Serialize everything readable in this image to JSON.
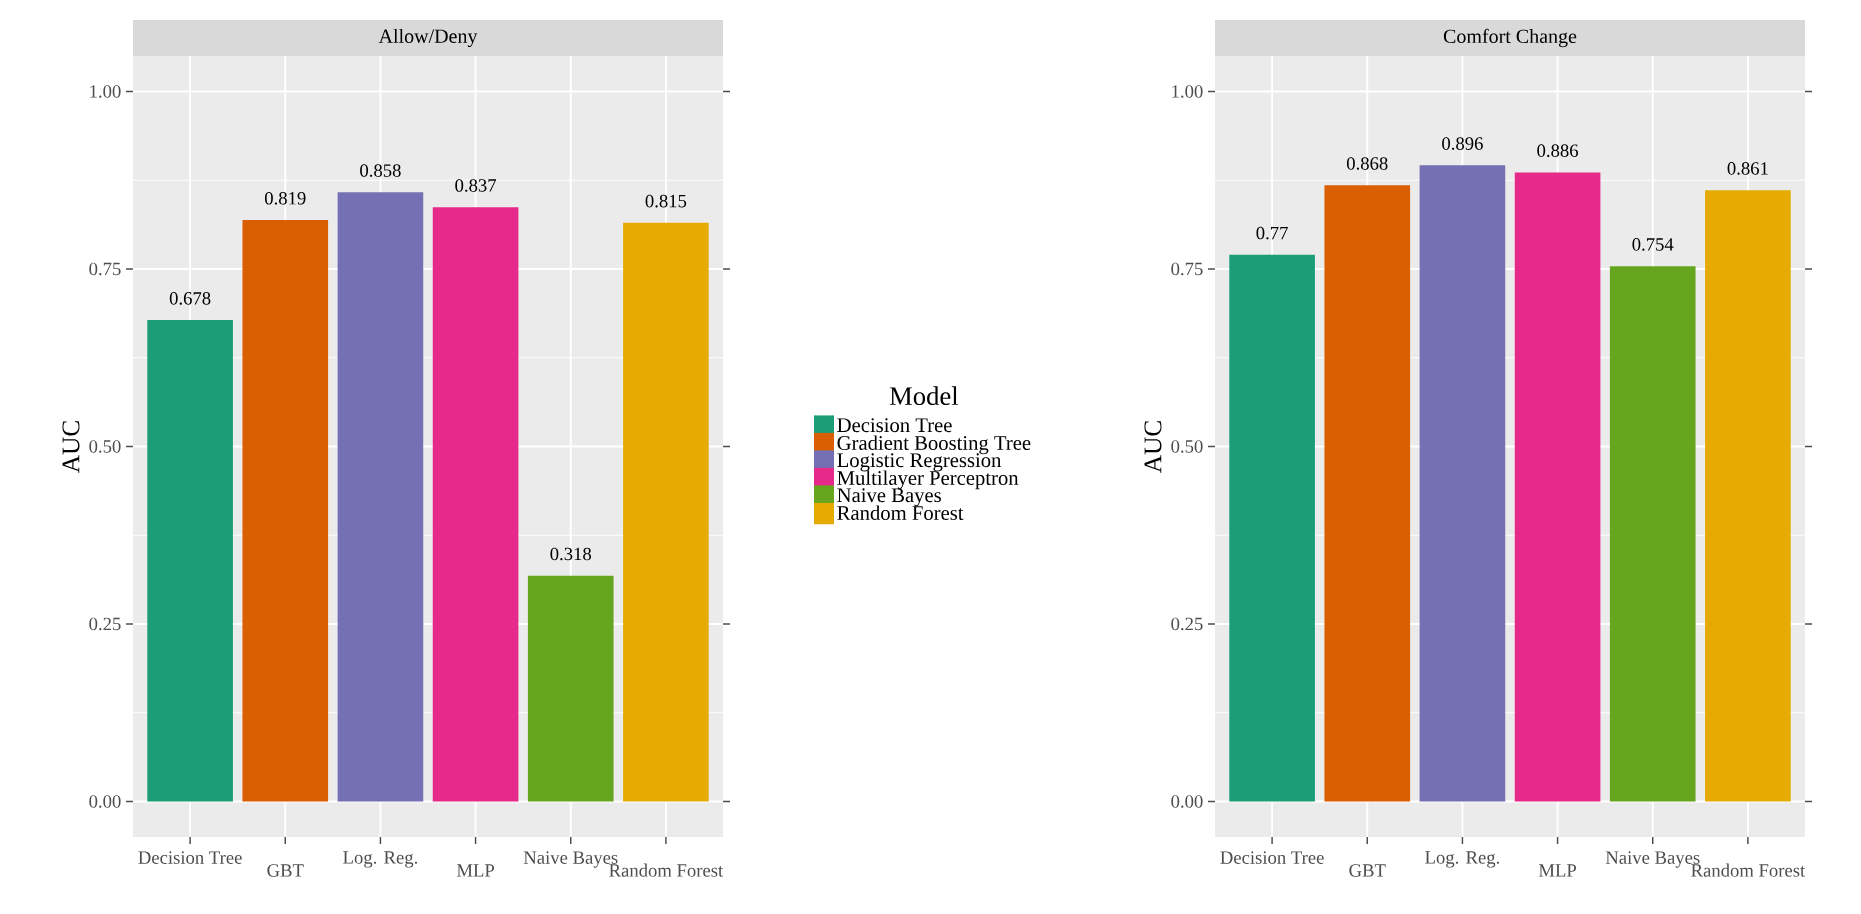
{
  "chart_data": [
    {
      "type": "bar",
      "title": "Allow/Deny",
      "ylabel": "AUC",
      "legend_title": "Model",
      "legend": "right",
      "grid": true,
      "data_labels": true,
      "categories": [
        "Decision Tree",
        "GBT",
        "Log. Reg.",
        "MLP",
        "Naive Bayes",
        "Random Forest"
      ],
      "ylim": [
        -0.05,
        1.05
      ],
      "yticks": [
        {
          "value": 0,
          "label": "0.00"
        },
        {
          "value": 0.25,
          "label": "0.25"
        },
        {
          "value": 0.5,
          "label": "0.50"
        },
        {
          "value": 0.75,
          "label": "0.75"
        },
        {
          "value": 1,
          "label": "1.00"
        }
      ],
      "series": [
        {
          "name": "Decision Tree",
          "color": "#1b9e77",
          "values": [
            0.678,
            null,
            null,
            null,
            null,
            null
          ]
        },
        {
          "name": "Gradient Boosting Tree",
          "color": "#d95f02",
          "values": [
            null,
            0.819,
            null,
            null,
            null,
            null
          ]
        },
        {
          "name": "Logistic Regression",
          "color": "#7570b3",
          "values": [
            null,
            null,
            0.858,
            null,
            null,
            null
          ]
        },
        {
          "name": "Multilayer Perceptron",
          "color": "#e7298a",
          "values": [
            null,
            null,
            null,
            0.837,
            null,
            null
          ]
        },
        {
          "name": "Naive Bayes",
          "color": "#66a61e",
          "values": [
            null,
            null,
            null,
            null,
            0.318,
            null
          ]
        },
        {
          "name": "Random Forest",
          "color": "#e6ab02",
          "values": [
            null,
            null,
            null,
            null,
            null,
            0.815
          ]
        }
      ]
    },
    {
      "type": "bar",
      "title": "Comfort Change",
      "ylabel": "AUC",
      "grid": true,
      "data_labels": true,
      "categories": [
        "Decision Tree",
        "GBT",
        "Log. Reg.",
        "MLP",
        "Naive Bayes",
        "Random Forest"
      ],
      "ylim": [
        -0.05,
        1.05
      ],
      "yticks": [
        {
          "value": 0,
          "label": "0.00"
        },
        {
          "value": 0.25,
          "label": "0.25"
        },
        {
          "value": 0.5,
          "label": "0.50"
        },
        {
          "value": 0.75,
          "label": "0.75"
        },
        {
          "value": 1,
          "label": "1.00"
        }
      ],
      "series": [
        {
          "color": "#1b9e77",
          "values": [
            0.77,
            null,
            null,
            null,
            null,
            null
          ]
        },
        {
          "color": "#d95f02",
          "values": [
            null,
            0.868,
            null,
            null,
            null,
            null
          ]
        },
        {
          "color": "#7570b3",
          "values": [
            null,
            null,
            0.896,
            null,
            null,
            null
          ]
        },
        {
          "color": "#e7298a",
          "values": [
            null,
            null,
            null,
            0.886,
            null,
            null
          ]
        },
        {
          "color": "#66a61e",
          "values": [
            null,
            null,
            null,
            null,
            0.754,
            null
          ]
        },
        {
          "color": "#e6ab02",
          "values": [
            null,
            null,
            null,
            null,
            null,
            0.861
          ]
        }
      ]
    }
  ]
}
